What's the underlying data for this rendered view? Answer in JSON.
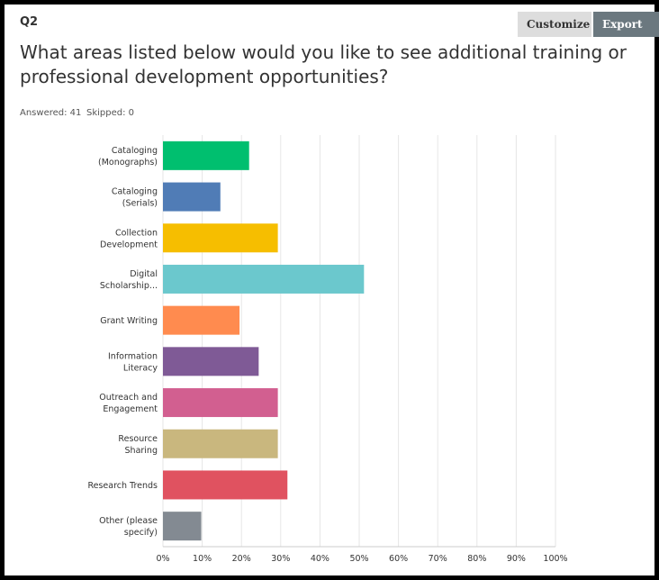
{
  "header": {
    "question": "Q2",
    "buttons": [
      "Customize",
      "Export"
    ],
    "title": "What areas listed below would you like to see additional training or professional development opportunities?",
    "answered": "Answered: 41",
    "skipped": "Skipped: 0"
  },
  "chart_data": {
    "type": "hbar",
    "categories": [
      "Cataloging (Monographs)",
      "Cataloging (Serials)",
      "Collection Development",
      "Digital Scholarship...",
      "Grant Writing",
      "Information Literacy",
      "Outreach and Engagement",
      "Resource Sharing",
      "Research Trends",
      "Other (please specify)"
    ],
    "values": [
      21.95,
      14.63,
      29.27,
      51.22,
      19.51,
      24.39,
      29.27,
      29.27,
      31.71,
      9.76
    ],
    "colors": [
      "#00bf6f",
      "#507cb6",
      "#f6be00",
      "#6bc8cd",
      "#ff8b4f",
      "#7f5a96",
      "#d25f90",
      "#c9b77e",
      "#e05260",
      "#838a92"
    ],
    "xlim": [
      0,
      100
    ],
    "xticks": [
      {
        "value": 0,
        "label": "0%"
      },
      {
        "value": 10,
        "label": "10%"
      },
      {
        "value": 20,
        "label": "20%"
      },
      {
        "value": 30,
        "label": "30%"
      },
      {
        "value": 40,
        "label": "40%"
      },
      {
        "value": 50,
        "label": "50%"
      },
      {
        "value": 60,
        "label": "60%"
      },
      {
        "value": 70,
        "label": "70%"
      },
      {
        "value": 80,
        "label": "80%"
      },
      {
        "value": 90,
        "label": "90%"
      },
      {
        "value": 100,
        "label": "100%"
      }
    ],
    "grid": true
  }
}
